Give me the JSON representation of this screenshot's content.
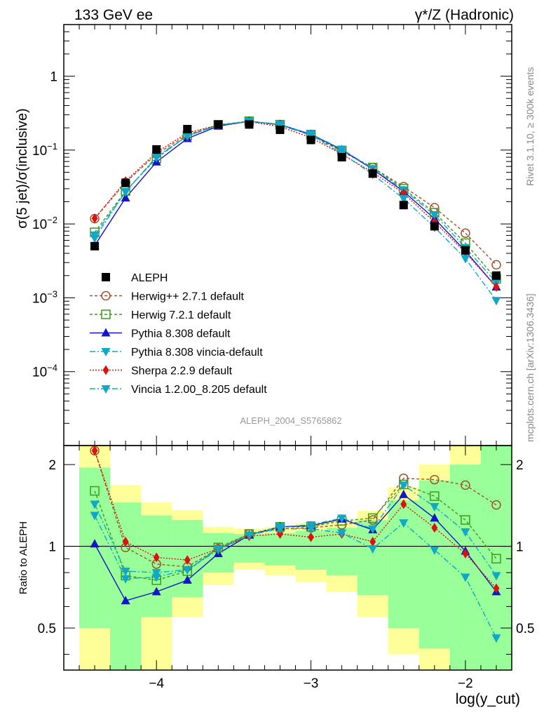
{
  "header": {
    "left": "133 GeV ee",
    "right": "γ*/Z (Hadronic)"
  },
  "side": {
    "rivet": "Rivet 3.1.10, ≥ 300k events",
    "mcplots": "mcplots.cern.ch [arXiv:1306.3436]"
  },
  "watermark": "ALEPH_2004_S5765862",
  "colors": {
    "data": "#000000",
    "herwigpp": "#a0522d",
    "herwig7": "#3c9a1e",
    "pythia": "#1414c8",
    "pythia_vincia": "#10a8c8",
    "sherpa": "#e01010",
    "vincia": "#10a8c8",
    "band_inner": "#99ff99",
    "band_outer": "#ffff99"
  },
  "chart_data": {
    "type": "line",
    "title": "133 GeV ee  γ*/Z (Hadronic)",
    "xlabel": "log(y_cut)",
    "ylabel": "σ(5 jet)/σ(inclusive)",
    "ratio_ylabel": "Ratio to ALEPH",
    "xlim": [
      -4.6,
      -1.7
    ],
    "ylim": [
      1e-05,
      5
    ],
    "ratio_ylim": [
      0.35,
      2.35
    ],
    "yscale": "log",
    "ratio_yscale": "log",
    "x_ticks": [
      {
        "v": -4,
        "label": "−4"
      },
      {
        "v": -3,
        "label": "−3"
      },
      {
        "v": -2,
        "label": "−2"
      }
    ],
    "y_ticks": [
      {
        "v": 1,
        "label": "1",
        "pre": "",
        "sup": ""
      },
      {
        "v": 0.1,
        "label": "",
        "pre": "10",
        "sup": "−1"
      },
      {
        "v": 0.01,
        "label": "",
        "pre": "10",
        "sup": "−2"
      },
      {
        "v": 0.001,
        "label": "",
        "pre": "10",
        "sup": "−3"
      },
      {
        "v": 0.0001,
        "label": "",
        "pre": "10",
        "sup": "−4"
      }
    ],
    "ratio_ticks": [
      {
        "v": 0.5,
        "label": "0.5"
      },
      {
        "v": 1,
        "label": "1"
      },
      {
        "v": 2,
        "label": "2"
      }
    ],
    "x": [
      -4.4,
      -4.2,
      -4.0,
      -3.8,
      -3.6,
      -3.4,
      -3.2,
      -3.0,
      -2.8,
      -2.6,
      -2.4,
      -2.2,
      -2.0,
      -1.8
    ],
    "bin_edges": [
      -4.5,
      -4.3,
      -4.1,
      -3.9,
      -3.7,
      -3.5,
      -3.3,
      -3.1,
      -2.9,
      -2.7,
      -2.5,
      -2.3,
      -2.1,
      -1.9,
      -1.7
    ],
    "data": {
      "name": "ALEPH",
      "values": [
        0.005,
        0.036,
        0.102,
        0.192,
        0.222,
        0.222,
        0.188,
        0.137,
        0.08,
        0.048,
        0.018,
        0.0093,
        0.0044,
        0.002
      ],
      "band_inner": [
        [
          0.5,
          1.95
        ],
        [
          0.35,
          1.45
        ],
        [
          0.55,
          1.3
        ],
        [
          0.65,
          1.25
        ],
        [
          0.8,
          1.12
        ],
        [
          0.87,
          1.11
        ],
        [
          0.85,
          1.12
        ],
        [
          0.82,
          1.14
        ],
        [
          0.78,
          1.17
        ],
        [
          0.66,
          1.25
        ],
        [
          0.5,
          1.48
        ],
        [
          0.42,
          1.75
        ],
        [
          0.35,
          2.0
        ],
        [
          0.35,
          2.35
        ]
      ],
      "band_outer": [
        [
          0.35,
          2.35
        ],
        [
          0.35,
          1.68
        ],
        [
          0.35,
          1.45
        ],
        [
          0.55,
          1.36
        ],
        [
          0.72,
          1.18
        ],
        [
          0.82,
          1.16
        ],
        [
          0.78,
          1.18
        ],
        [
          0.74,
          1.22
        ],
        [
          0.68,
          1.25
        ],
        [
          0.55,
          1.35
        ],
        [
          0.4,
          1.65
        ],
        [
          0.35,
          2.0
        ],
        [
          0.35,
          2.35
        ],
        [
          0.35,
          2.35
        ]
      ]
    },
    "series": [
      {
        "name": "Herwig++ 2.7.1 default",
        "color": "#a0522d",
        "dash": "4,3",
        "marker": "circle-open",
        "values": [
          0.0118,
          0.0365,
          0.088,
          0.162,
          0.218,
          0.245,
          0.218,
          0.16,
          0.096,
          0.058,
          0.032,
          0.0166,
          0.0075,
          0.0028
        ]
      },
      {
        "name": "Herwig 7.2.1 default",
        "color": "#3c9a1e",
        "dash": "4,3",
        "marker": "square-open",
        "values": [
          0.0077,
          0.028,
          0.077,
          0.158,
          0.22,
          0.246,
          0.221,
          0.162,
          0.098,
          0.058,
          0.03,
          0.0142,
          0.0055,
          0.0018
        ]
      },
      {
        "name": "Pythia 8.308 default",
        "color": "#1414c8",
        "dash": "",
        "marker": "triangle-up",
        "values": [
          0.0051,
          0.0225,
          0.069,
          0.143,
          0.211,
          0.245,
          0.222,
          0.163,
          0.101,
          0.055,
          0.0275,
          0.0118,
          0.0043,
          0.0014
        ]
      },
      {
        "name": "Pythia 8.308 vincia-default",
        "color": "#10a8c8",
        "dash": "8,3,2,3",
        "marker": "triangle-down",
        "values": [
          0.0071,
          0.027,
          0.082,
          0.155,
          0.216,
          0.245,
          0.222,
          0.165,
          0.103,
          0.056,
          0.029,
          0.0133,
          0.0048,
          0.0016
        ]
      },
      {
        "name": "Sherpa 2.2.9 default",
        "color": "#e01010",
        "dash": "2,2",
        "marker": "diamond",
        "values": [
          0.0119,
          0.038,
          0.093,
          0.171,
          0.218,
          0.242,
          0.208,
          0.147,
          0.088,
          0.05,
          0.026,
          0.0106,
          0.0041,
          0.0014
        ]
      },
      {
        "name": "Vincia 1.2.00_8.205 default",
        "color": "#10a8c8",
        "dash": "8,3,2,3",
        "marker": "triangle-down",
        "values": [
          0.0064,
          0.0275,
          0.079,
          0.155,
          0.218,
          0.245,
          0.218,
          0.158,
          0.09,
          0.047,
          0.022,
          0.009,
          0.0034,
          0.00092
        ]
      }
    ],
    "ratios": [
      [
        2.25,
        0.99,
        0.86,
        0.84,
        0.98,
        1.11,
        1.16,
        1.17,
        1.2,
        1.25,
        1.78,
        1.76,
        1.68,
        1.42
      ],
      [
        1.6,
        0.78,
        0.75,
        0.81,
        0.99,
        1.11,
        1.18,
        1.18,
        1.24,
        1.27,
        1.69,
        1.53,
        1.25,
        0.9
      ],
      [
        1.02,
        0.63,
        0.68,
        0.75,
        0.94,
        1.1,
        1.18,
        1.19,
        1.26,
        1.15,
        1.55,
        1.27,
        0.96,
        0.68
      ],
      [
        1.43,
        0.81,
        0.8,
        0.82,
        0.97,
        1.1,
        1.18,
        1.2,
        1.27,
        1.16,
        1.68,
        1.4,
        1.13,
        0.78
      ],
      [
        2.25,
        1.04,
        0.91,
        0.89,
        0.98,
        1.09,
        1.11,
        1.08,
        1.11,
        1.04,
        1.43,
        1.17,
        0.94,
        0.7
      ],
      [
        1.3,
        0.76,
        0.77,
        0.82,
        0.98,
        1.1,
        1.16,
        1.16,
        1.12,
        0.98,
        1.22,
        0.97,
        0.77,
        0.46
      ]
    ],
    "legend_position": "middle-left"
  }
}
